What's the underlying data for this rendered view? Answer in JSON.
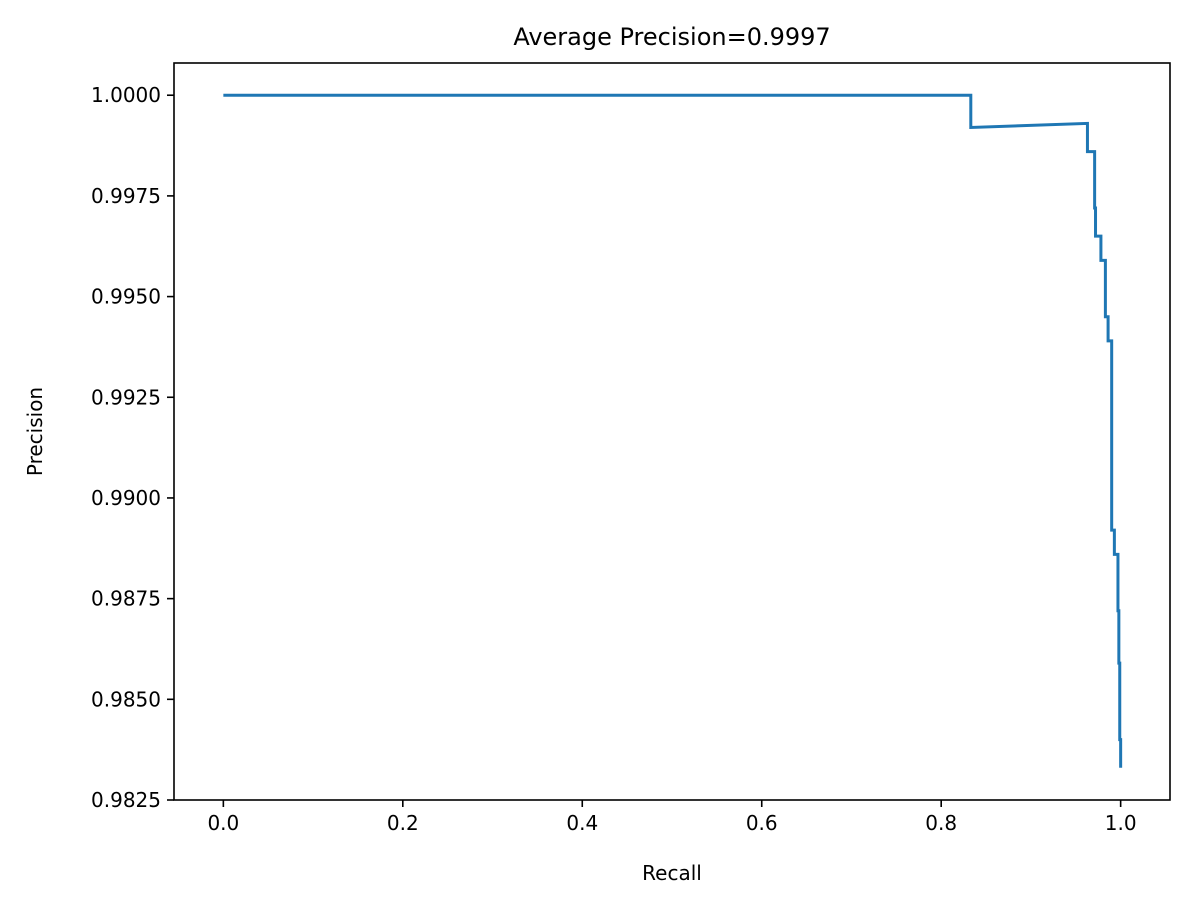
{
  "chart_data": {
    "type": "line",
    "title": "Average Precision=0.9997",
    "xlabel": "Recall",
    "ylabel": "Precision",
    "xlim": [
      -0.055,
      1.055
    ],
    "ylim": [
      0.9825,
      1.0008
    ],
    "grid": false,
    "legend": "none",
    "line_color": "#1f77b4",
    "xticks": [
      0.0,
      0.2,
      0.4,
      0.6,
      0.8,
      1.0
    ],
    "xtick_labels": [
      "0.0",
      "0.2",
      "0.4",
      "0.6",
      "0.8",
      "1.0"
    ],
    "yticks": [
      0.9825,
      0.985,
      0.9875,
      0.99,
      0.9925,
      0.995,
      0.9975,
      1.0
    ],
    "ytick_labels": [
      "0.9825",
      "0.9850",
      "0.9875",
      "0.9900",
      "0.9925",
      "0.9950",
      "0.9975",
      "1.0000"
    ],
    "series": [
      {
        "x": [
          0.0,
          0.833,
          0.833,
          0.963,
          0.963,
          0.971,
          0.971,
          0.972,
          0.972,
          0.978,
          0.978,
          0.983,
          0.983,
          0.986,
          0.986,
          0.99,
          0.99,
          0.993,
          0.993,
          0.997,
          0.997,
          0.998,
          0.998,
          0.999,
          0.999,
          1.0,
          1.0
        ],
        "y": [
          1.0,
          1.0,
          0.9992,
          0.9993,
          0.9986,
          0.9986,
          0.9972,
          0.9972,
          0.9965,
          0.9965,
          0.9959,
          0.9959,
          0.9945,
          0.9945,
          0.9939,
          0.9939,
          0.9892,
          0.9892,
          0.9886,
          0.9886,
          0.9872,
          0.9872,
          0.9859,
          0.9859,
          0.984,
          0.984,
          0.9833
        ]
      }
    ]
  }
}
